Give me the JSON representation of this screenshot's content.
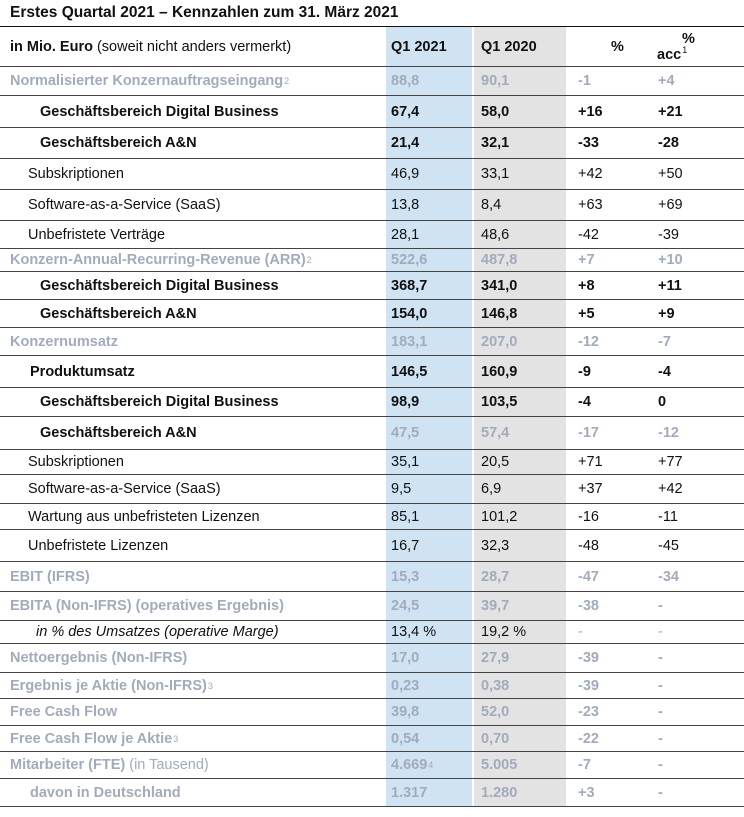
{
  "title": "Erstes Quartal 2021 – Kennzahlen zum 31. März 2021",
  "header": {
    "label_bold": "in Mio. Euro",
    "label_normal": "(soweit nicht anders vermerkt)",
    "q1_2021": "Q1 2021",
    "q1_2020": "Q1 2020",
    "pct": "%",
    "acc_pct": "%",
    "acc": "acc",
    "acc_sup": "1"
  },
  "rows": [
    {
      "label": "Normalisierter Konzernauftragseingang",
      "sup": "2",
      "q21": "88,8",
      "q20": "90,1",
      "pct": "-1",
      "acc": "+4"
    },
    {
      "label": "Geschäftsbereich Digital Business",
      "q21": "67,4",
      "q20": "58,0",
      "pct": "+16",
      "acc": "+21"
    },
    {
      "label": "Geschäftsbereich A&N",
      "q21": "21,4",
      "q20": "32,1",
      "pct": "-33",
      "acc": "-28"
    },
    {
      "label": "Subskriptionen",
      "q21": "46,9",
      "q20": "33,1",
      "pct": "+42",
      "acc": "+50"
    },
    {
      "label": "Software-as-a-Service (SaaS)",
      "q21": "13,8",
      "q20": "8,4",
      "pct": "+63",
      "acc": "+69"
    },
    {
      "label": "Unbefristete Verträge",
      "q21": "28,1",
      "q20": "48,6",
      "pct": "-42",
      "acc": "-39"
    },
    {
      "label": "Konzern-Annual-Recurring-Revenue (ARR)",
      "sup": "2",
      "q21": "522,6",
      "q20": "487,8",
      "pct": "+7",
      "acc": "+10"
    },
    {
      "label": "Geschäftsbereich Digital Business",
      "q21": "368,7",
      "q20": "341,0",
      "pct": "+8",
      "acc": "+11"
    },
    {
      "label": "Geschäftsbereich A&N",
      "q21": "154,0",
      "q20": "146,8",
      "pct": "+5",
      "acc": "+9"
    },
    {
      "label": "Konzernumsatz",
      "q21": "183,1",
      "q20": "207,0",
      "pct": "-12",
      "acc": "-7"
    },
    {
      "label": "Produktumsatz",
      "q21": "146,5",
      "q20": "160,9",
      "pct": "-9",
      "acc": "-4"
    },
    {
      "label": "Geschäftsbereich Digital Business",
      "q21": "98,9",
      "q20": "103,5",
      "pct": "-4",
      "acc": "0"
    },
    {
      "label": "Geschäftsbereich A&N",
      "q21": "47,5",
      "q20": "57,4",
      "pct": "-17",
      "acc": "-12"
    },
    {
      "label": "Subskriptionen",
      "q21": "35,1",
      "q20": "20,5",
      "pct": "+71",
      "acc": "+77"
    },
    {
      "label": "Software-as-a-Service (SaaS)",
      "q21": "9,5",
      "q20": "6,9",
      "pct": "+37",
      "acc": "+42"
    },
    {
      "label": "Wartung aus unbefristeten Lizenzen",
      "q21": "85,1",
      "q20": "101,2",
      "pct": "-16",
      "acc": "-11"
    },
    {
      "label": "Unbefristete Lizenzen",
      "q21": "16,7",
      "q20": "32,3",
      "pct": "-48",
      "acc": "-45"
    },
    {
      "label": "EBIT (IFRS)",
      "q21": "15,3",
      "q20": "28,7",
      "pct": "-47",
      "acc": "-34"
    },
    {
      "label": "EBITA (Non-IFRS) (operatives Ergebnis)",
      "q21": "24,5",
      "q20": "39,7",
      "pct": "-38",
      "acc": "-"
    },
    {
      "label": "in % des Umsatzes (operative Marge)",
      "q21": "13,4 %",
      "q20": "19,2 %",
      "pct": "-",
      "acc": "-"
    },
    {
      "label": "Nettoergebnis (Non-IFRS)",
      "q21": "17,0",
      "q20": "27,9",
      "pct": "-39",
      "acc": "-"
    },
    {
      "label": "Ergebnis je Aktie (Non-IFRS)",
      "sup": "3",
      "q21": "0,23",
      "q20": "0,38",
      "pct": "-39",
      "acc": "-"
    },
    {
      "label": "Free Cash Flow",
      "q21": "39,8",
      "q20": "52,0",
      "pct": "-23",
      "acc": "-"
    },
    {
      "label": "Free Cash Flow je Aktie",
      "sup": "3",
      "q21": "0,54",
      "q20": "0,70",
      "pct": "-22",
      "acc": "-"
    },
    {
      "label": "Mitarbeiter (FTE)",
      "label_light": "(in Tausend)",
      "q21": "4.669",
      "q21_sup": "4",
      "q20": "5.005",
      "pct": "-7",
      "acc": "-"
    },
    {
      "label": "davon in Deutschland",
      "q21": "1.317",
      "q20": "1.280",
      "pct": "+3",
      "acc": "-"
    }
  ],
  "colors": {
    "grey_text": "#a2abbc",
    "q1_2021_column": "#cfe3f3",
    "q1_2020_column": "#e3e3e3"
  }
}
